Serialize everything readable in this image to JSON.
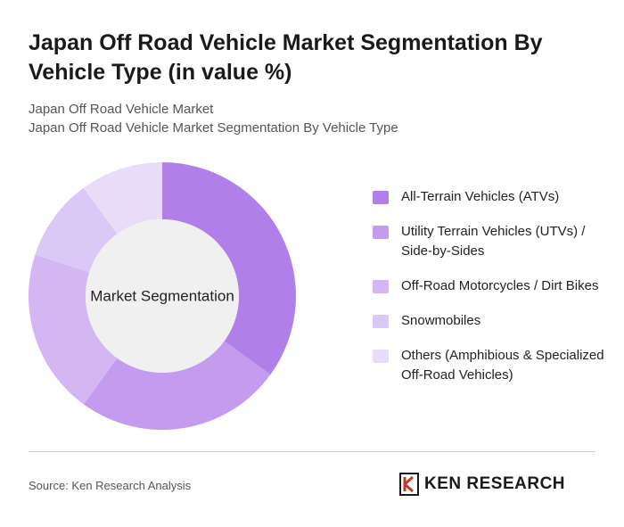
{
  "chart_data": {
    "type": "pie",
    "title": "Japan Off Road Vehicle Market Segmentation By Vehicle Type (in value %)",
    "subtitle": [
      "Japan Off Road Vehicle Market",
      "Japan Off Road Vehicle Market Segmentation By Vehicle Type"
    ],
    "center_label": "Market Segmentation",
    "categories": [
      "All-Terrain Vehicles (ATVs)",
      "Utility Terrain Vehicles (UTVs) / Side-by-Sides",
      "Off-Road Motorcycles / Dirt Bikes",
      "Snowmobiles",
      "Others (Amphibious & Specialized Off-Road Vehicles)"
    ],
    "values": [
      35,
      25,
      20,
      10,
      10
    ],
    "colors": [
      "#b07fe8",
      "#c49bef",
      "#d4b6f3",
      "#dcc8f6",
      "#e9dcf9"
    ],
    "source": "Source: Ken Research Analysis",
    "brand": "KEN RESEARCH"
  }
}
